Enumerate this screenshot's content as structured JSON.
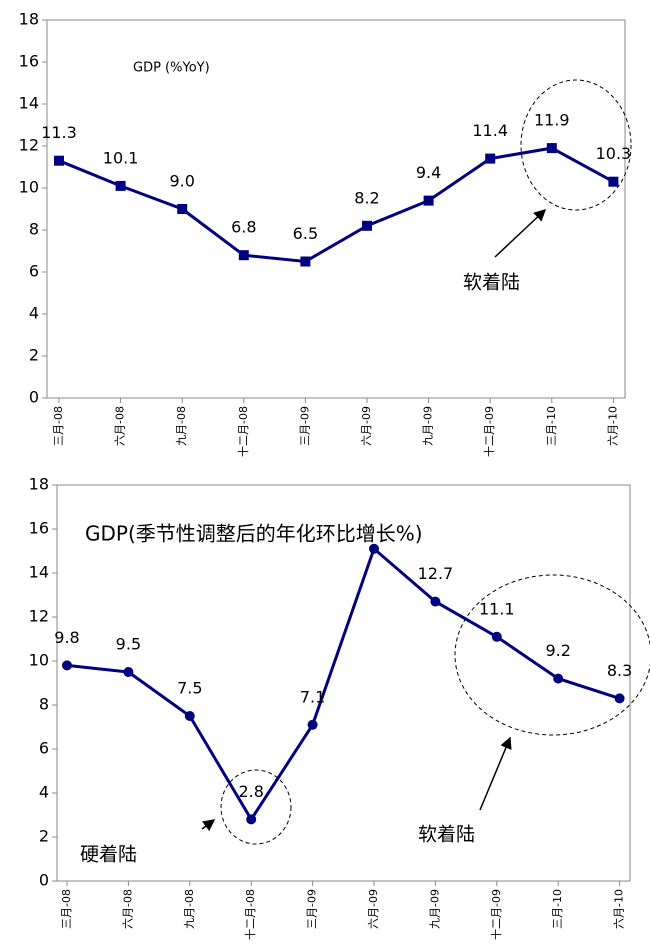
{
  "charts": [
    {
      "chart_data": {
        "type": "line",
        "subtitle": "GDP (%YoY)",
        "marker": "square",
        "color": "#000080",
        "categories": [
          "三月-08",
          "六月-08",
          "九月-08",
          "十二月-08",
          "三月-09",
          "六月-09",
          "九月-09",
          "十二月-09",
          "三月-10",
          "六月-10"
        ],
        "values": [
          11.3,
          10.1,
          9.0,
          6.8,
          6.5,
          8.2,
          9.4,
          11.4,
          11.9,
          10.3
        ],
        "value_labels": [
          "11.3",
          "10.1",
          "9.0",
          "6.8",
          "6.5",
          "8.2",
          "9.4",
          "11.4",
          "11.9",
          "10.3"
        ],
        "ylim": [
          0,
          18
        ],
        "yticks": [
          0,
          2,
          4,
          6,
          8,
          10,
          12,
          14,
          16,
          18
        ],
        "annotations": [
          "软着陆"
        ]
      }
    },
    {
      "chart_data": {
        "type": "line",
        "title": "GDP(季节性调整后的年化环比增长%)",
        "marker": "circle",
        "color": "#000080",
        "categories": [
          "三月-08",
          "六月-08",
          "九月-08",
          "十二月-08",
          "三月-09",
          "六月-09",
          "九月-09",
          "十二月-09",
          "三月-10",
          "六月-10"
        ],
        "values": [
          9.8,
          9.5,
          7.5,
          2.8,
          7.1,
          15.1,
          12.7,
          11.1,
          9.2,
          8.3
        ],
        "value_labels": [
          "9.8",
          "9.5",
          "7.5",
          "2.8",
          "7.1",
          null,
          "12.7",
          "11.1",
          "9.2",
          "8.3"
        ],
        "ylim": [
          0,
          18
        ],
        "yticks": [
          0,
          2,
          4,
          6,
          8,
          10,
          12,
          14,
          16,
          18
        ],
        "annotations": [
          "硬着陆",
          "软着陆"
        ]
      }
    }
  ]
}
